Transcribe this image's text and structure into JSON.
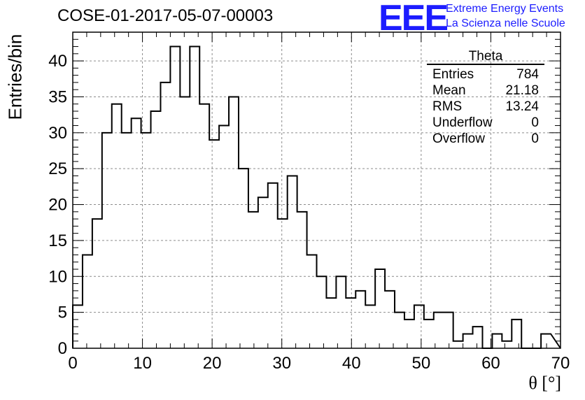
{
  "header": {
    "title": "COSE-01-2017-05-07-00003",
    "logo_text": "EEE",
    "logo_line1": "Extreme Energy Events",
    "logo_line2": "La Scienza nelle Scuole"
  },
  "stats_box": {
    "name": "Theta",
    "rows": [
      {
        "label": "Entries",
        "value": "784"
      },
      {
        "label": "Mean",
        "value": "21.18"
      },
      {
        "label": "RMS",
        "value": "13.24"
      },
      {
        "label": "Underflow",
        "value": "0"
      },
      {
        "label": "Overflow",
        "value": "0"
      }
    ]
  },
  "colors": {
    "line": "#000000",
    "grid": "#8c8c8c",
    "logo": "#1c1cff"
  },
  "chart_data": {
    "type": "bar",
    "histogram": true,
    "xlabel": "θ [°]",
    "ylabel": "Entries/bin",
    "xlim": [
      0,
      70
    ],
    "ylim": [
      0,
      44
    ],
    "grid": true,
    "bin_width": 1.4,
    "bin_edges_start": 0,
    "values": [
      6,
      13,
      18,
      30,
      34,
      30,
      32,
      30,
      33,
      37,
      42,
      35,
      42,
      34,
      29,
      31,
      35,
      25,
      19,
      21,
      23,
      18,
      24,
      19,
      13,
      10,
      7,
      10,
      7,
      8,
      6,
      11,
      8,
      5,
      4,
      6,
      4,
      5,
      5,
      1,
      2,
      3,
      0,
      2,
      1,
      4,
      0,
      0,
      2
    ],
    "x_ticks": [
      0,
      10,
      20,
      30,
      40,
      50,
      60,
      70
    ],
    "y_ticks": [
      0,
      5,
      10,
      15,
      20,
      25,
      30,
      35,
      40
    ]
  }
}
